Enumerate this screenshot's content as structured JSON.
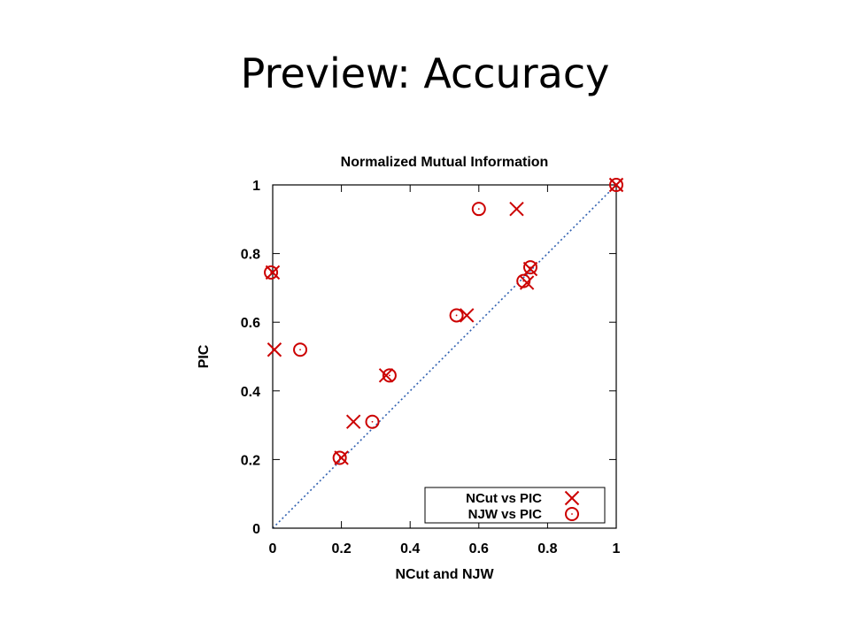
{
  "slide": {
    "title": "Preview: Accuracy"
  },
  "chart_data": {
    "type": "scatter",
    "title": "Normalized Mutual Information",
    "xlabel": "NCut and NJW",
    "ylabel": "PIC",
    "xlim": [
      0,
      1
    ],
    "ylim": [
      0,
      1
    ],
    "xticks": [
      0,
      0.2,
      0.4,
      0.6,
      0.8,
      1
    ],
    "yticks": [
      0,
      0.2,
      0.4,
      0.6,
      0.8,
      1
    ],
    "xtick_labels": [
      "0",
      "0.2",
      "0.4",
      "0.6",
      "0.8",
      "1"
    ],
    "ytick_labels": [
      "0",
      "0.2",
      "0.4",
      "0.6",
      "0.8",
      "1"
    ],
    "grid": false,
    "legend_position": "bottom-right",
    "reference_line": {
      "style": "dotted",
      "color": "#3060b0",
      "from": [
        0,
        0
      ],
      "to": [
        1,
        1
      ]
    },
    "series": [
      {
        "name": "NCut vs PIC",
        "marker": "x",
        "color": "#cc0000",
        "points": [
          {
            "x": 0.0,
            "y": 0.745
          },
          {
            "x": 0.005,
            "y": 0.52
          },
          {
            "x": 0.2,
            "y": 0.205
          },
          {
            "x": 0.235,
            "y": 0.31
          },
          {
            "x": 0.33,
            "y": 0.445
          },
          {
            "x": 0.565,
            "y": 0.62
          },
          {
            "x": 0.71,
            "y": 0.93
          },
          {
            "x": 0.74,
            "y": 0.715
          },
          {
            "x": 0.75,
            "y": 0.755
          },
          {
            "x": 1.0,
            "y": 1.0
          }
        ]
      },
      {
        "name": "NJW vs PIC",
        "marker": "circle",
        "color": "#cc0000",
        "points": [
          {
            "x": -0.005,
            "y": 0.745
          },
          {
            "x": 0.08,
            "y": 0.52
          },
          {
            "x": 0.195,
            "y": 0.205
          },
          {
            "x": 0.29,
            "y": 0.31
          },
          {
            "x": 0.34,
            "y": 0.445
          },
          {
            "x": 0.535,
            "y": 0.62
          },
          {
            "x": 0.6,
            "y": 0.93
          },
          {
            "x": 0.73,
            "y": 0.72
          },
          {
            "x": 0.75,
            "y": 0.76
          },
          {
            "x": 1.0,
            "y": 1.0
          }
        ]
      }
    ]
  }
}
